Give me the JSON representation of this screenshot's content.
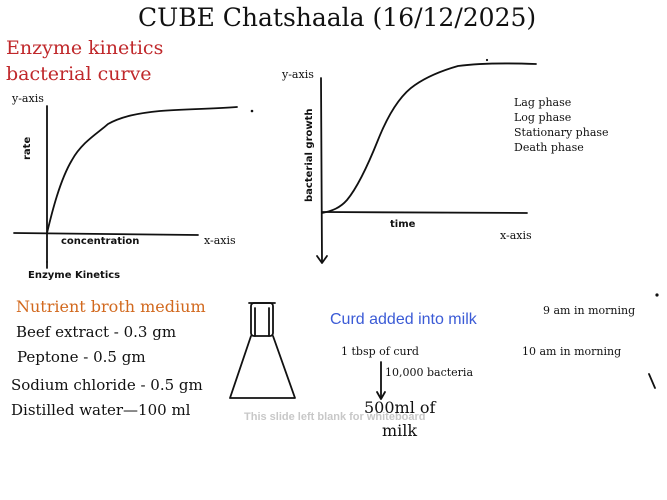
{
  "title": "CUBE Chatshaala (16/12/2025)",
  "left_heading": {
    "line1": "Enzyme kinetics",
    "line2": "bacterial curve",
    "color": "#c0282b"
  },
  "enzyme_graph": {
    "y_axis": "y-axis",
    "x_axis": "x-axis",
    "ylabel": "rate",
    "xlabel": "concentration",
    "caption": "Enzyme Kinetics"
  },
  "growth_graph": {
    "y_axis": "y-axis",
    "x_axis": "x-axis",
    "ylabel": "bacterial growth",
    "xlabel": "time",
    "phases": [
      "Lag phase",
      "Log phase",
      "Stationary phase",
      "Death phase"
    ]
  },
  "broth": {
    "heading": "Nutrient broth medium",
    "heading_color": "#d2691e",
    "items": [
      "Beef extract - 0.3 gm",
      "Peptone - 0.5 gm",
      "Sodium chloride - 0.5 gm",
      "Distilled water—100 ml"
    ]
  },
  "curd": {
    "heading": "Curd added into milk",
    "heading_color": "#3b5bd6",
    "time1": "9 am in morning",
    "time2": "10 am in morning",
    "amount": "1 tbsp of curd",
    "bacteria": "10,000 bacteria",
    "milk_line1": "500ml of",
    "milk_line2": "milk"
  },
  "watermark": "This slide left blank for whiteboard",
  "icons": [
    "flask-icon",
    "arrow-down-icon"
  ]
}
